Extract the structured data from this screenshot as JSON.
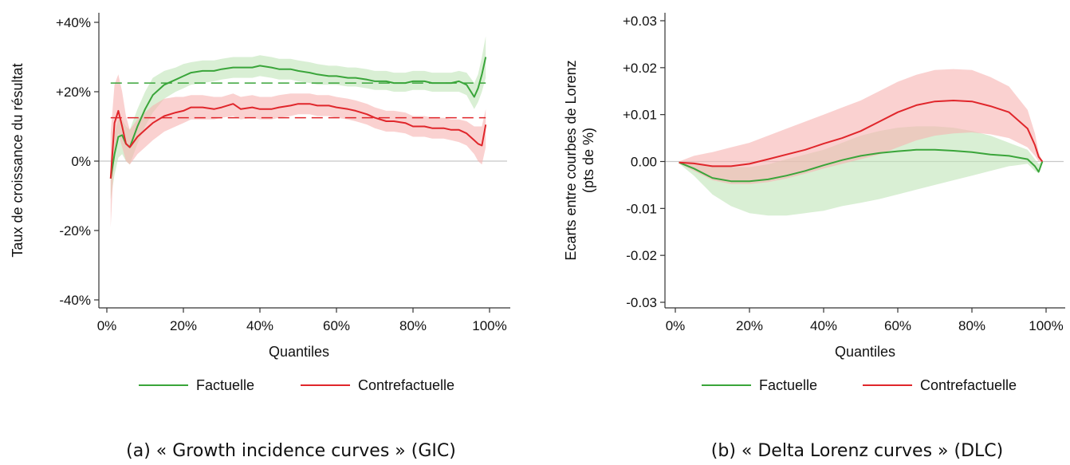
{
  "colors": {
    "factuelle": "#3aa53a",
    "contrefactuelle": "#e0262b",
    "factuelle_band": "#bfe5b8",
    "contrefactuelle_band": "#f6b3b0",
    "zero_line": "#c8c8c8"
  },
  "chart_data": [
    {
      "id": "gic",
      "type": "line",
      "caption": "(a) « Growth incidence curves » (GIC)",
      "xlabel": "Quantiles",
      "ylabel": "Taux de croissance du résultat",
      "xlim": [
        0,
        100
      ],
      "ylim": [
        -40,
        40
      ],
      "xticks": [
        0,
        20,
        40,
        60,
        80,
        100
      ],
      "xtick_labels": [
        "0%",
        "20%",
        "40%",
        "60%",
        "80%",
        "100%"
      ],
      "yticks": [
        40,
        20,
        0,
        -20,
        -40
      ],
      "ytick_labels": [
        "+40%",
        "+20%",
        "0%",
        "-20%",
        "-40%"
      ],
      "zero_line": true,
      "legend_position": "bottom",
      "series": [
        {
          "name": "Factuelle",
          "color_key": "factuelle",
          "x": [
            1,
            2,
            3,
            4,
            5,
            6,
            8,
            10,
            12,
            15,
            18,
            20,
            22,
            25,
            28,
            30,
            33,
            35,
            38,
            40,
            43,
            45,
            48,
            50,
            53,
            55,
            58,
            60,
            63,
            65,
            68,
            70,
            73,
            75,
            78,
            80,
            83,
            85,
            88,
            90,
            92,
            94,
            96,
            97,
            98,
            99
          ],
          "y": [
            -5,
            2,
            7,
            7.5,
            5,
            4,
            10,
            15,
            19,
            22,
            23.5,
            24.5,
            25.5,
            26,
            26,
            26.5,
            27,
            27,
            27,
            27.5,
            27,
            26.5,
            26.5,
            26,
            25.5,
            25,
            24.5,
            24.5,
            24,
            24,
            23.5,
            23,
            23,
            22.5,
            22.5,
            23,
            23,
            22.5,
            22.5,
            22.5,
            23,
            22,
            18.5,
            21,
            25,
            30
          ],
          "lower": [
            -11,
            -4,
            1,
            2,
            0,
            -1,
            5,
            10,
            14,
            18,
            20,
            21,
            22,
            22.5,
            23,
            23.5,
            24,
            24,
            24,
            24.5,
            24,
            23.5,
            23.5,
            23,
            22.5,
            22,
            22,
            22,
            21.5,
            21.5,
            21,
            20.5,
            20.5,
            20,
            20,
            20.5,
            20.5,
            20,
            20,
            20,
            20,
            19,
            15,
            17,
            20,
            24
          ],
          "upper": [
            0,
            8,
            12,
            12,
            10,
            9,
            15,
            20,
            24,
            26,
            27,
            28,
            28.5,
            29,
            29,
            29.5,
            30,
            30,
            30,
            30.5,
            30,
            29.5,
            29.5,
            29,
            28.5,
            28,
            27.5,
            27.5,
            27,
            27,
            26.5,
            26,
            26,
            25.5,
            25.5,
            26,
            26,
            25.5,
            25.5,
            25.5,
            26,
            25.5,
            22.5,
            25,
            30,
            36
          ],
          "mean": 22.5
        },
        {
          "name": "Contrefactuelle",
          "color_key": "contrefactuelle",
          "x": [
            1,
            2,
            3,
            4,
            5,
            6,
            8,
            10,
            12,
            15,
            18,
            20,
            22,
            25,
            28,
            30,
            33,
            35,
            38,
            40,
            43,
            45,
            48,
            50,
            53,
            55,
            58,
            60,
            63,
            65,
            68,
            70,
            73,
            75,
            78,
            80,
            83,
            85,
            88,
            90,
            92,
            94,
            96,
            97,
            98,
            99
          ],
          "y": [
            -5,
            11,
            14.5,
            10,
            5,
            4,
            7,
            9,
            11,
            13,
            14,
            14.5,
            15.5,
            15.5,
            15,
            15.5,
            16.5,
            15,
            15.5,
            15,
            15,
            15.5,
            16,
            16.5,
            16.5,
            16,
            16,
            15.5,
            15,
            14.5,
            13.5,
            12.5,
            11.5,
            11.5,
            11,
            10,
            10,
            9.5,
            9.5,
            9,
            9,
            8,
            6,
            5,
            4.5,
            10.5
          ],
          "lower": [
            -19,
            3,
            8,
            4,
            0,
            -1,
            2,
            4,
            6,
            8.5,
            10,
            11,
            12,
            12,
            12,
            12.5,
            13,
            12,
            12.5,
            12,
            12,
            12.5,
            13,
            13.5,
            13.5,
            13,
            13,
            12.5,
            12,
            11.5,
            10.5,
            9.5,
            8.5,
            8.5,
            8,
            7,
            7,
            6.5,
            6.5,
            6,
            5.5,
            4.5,
            2,
            0,
            -1,
            4
          ],
          "upper": [
            8,
            22,
            25,
            20,
            13,
            9,
            12,
            14,
            16,
            18,
            18.5,
            18.5,
            19,
            19,
            18.5,
            18.5,
            19.5,
            18.5,
            19,
            18.5,
            18.5,
            19,
            19.5,
            19.5,
            19.5,
            19,
            19,
            18.5,
            18,
            17.5,
            16.5,
            15.5,
            14.5,
            14.5,
            14,
            13,
            13,
            12.5,
            12.5,
            12,
            12,
            11.5,
            10,
            10,
            10,
            15
          ],
          "mean": 12.5
        }
      ]
    },
    {
      "id": "dlc",
      "type": "line",
      "caption": "(b) « Delta Lorenz curves » (DLC)",
      "xlabel": "Quantiles",
      "ylabel_line1": "Ecarts entre courbes de Lorenz",
      "ylabel_line2": "(pts de %)",
      "xlim": [
        0,
        100
      ],
      "ylim": [
        -0.03,
        0.03
      ],
      "xticks": [
        0,
        20,
        40,
        60,
        80,
        100
      ],
      "xtick_labels": [
        "0%",
        "20%",
        "40%",
        "60%",
        "80%",
        "100%"
      ],
      "yticks": [
        0.03,
        0.02,
        0.01,
        0,
        -0.01,
        -0.02,
        -0.03
      ],
      "ytick_labels": [
        "+0.03",
        "+0.02",
        "+0.01",
        "0.00",
        "-0.01",
        "-0.02",
        "-0.03"
      ],
      "zero_line": true,
      "legend_position": "bottom",
      "series": [
        {
          "name": "Factuelle",
          "color_key": "factuelle",
          "x": [
            1,
            5,
            10,
            15,
            20,
            25,
            30,
            35,
            40,
            45,
            50,
            55,
            60,
            65,
            70,
            75,
            80,
            85,
            90,
            95,
            97,
            98,
            99
          ],
          "y": [
            -0.0002,
            -0.0015,
            -0.0035,
            -0.0042,
            -0.0042,
            -0.0038,
            -0.003,
            -0.002,
            -0.0008,
            0.0003,
            0.0012,
            0.0018,
            0.0022,
            0.0025,
            0.0025,
            0.0023,
            0.002,
            0.0015,
            0.0012,
            0.0005,
            -0.001,
            -0.0022,
            0.0
          ],
          "lower": [
            -0.0004,
            -0.003,
            -0.007,
            -0.0095,
            -0.011,
            -0.0115,
            -0.0115,
            -0.011,
            -0.0105,
            -0.0095,
            -0.0088,
            -0.008,
            -0.007,
            -0.006,
            -0.005,
            -0.004,
            -0.003,
            -0.002,
            -0.001,
            -0.0005,
            -0.002,
            -0.0025,
            0.0
          ],
          "upper": [
            0.0,
            -0.0002,
            -0.0008,
            -0.0012,
            -0.0012,
            -0.0006,
            0.0005,
            0.0015,
            0.0025,
            0.004,
            0.0055,
            0.0065,
            0.0072,
            0.0075,
            0.0075,
            0.0072,
            0.0065,
            0.0055,
            0.004,
            0.0025,
            0.0005,
            -0.0005,
            0.0
          ],
          "mean": null
        },
        {
          "name": "Contrefactuelle",
          "color_key": "contrefactuelle",
          "x": [
            1,
            5,
            10,
            15,
            20,
            25,
            30,
            35,
            40,
            45,
            50,
            55,
            60,
            65,
            70,
            75,
            80,
            85,
            90,
            95,
            97,
            98,
            99
          ],
          "y": [
            -0.0002,
            -0.0004,
            -0.001,
            -0.001,
            -0.0005,
            0.0005,
            0.0015,
            0.0025,
            0.0038,
            0.005,
            0.0065,
            0.0085,
            0.0105,
            0.012,
            0.0128,
            0.013,
            0.0128,
            0.0118,
            0.0105,
            0.007,
            0.0035,
            0.001,
            0.0
          ],
          "lower": [
            -0.0004,
            -0.002,
            -0.004,
            -0.0048,
            -0.0048,
            -0.0044,
            -0.0036,
            -0.0026,
            -0.0015,
            -0.0005,
            0.0005,
            0.0015,
            0.003,
            0.0045,
            0.0055,
            0.006,
            0.0062,
            0.0058,
            0.005,
            0.003,
            0.0012,
            0.0,
            0.0
          ],
          "upper": [
            0.0,
            0.0012,
            0.002,
            0.003,
            0.004,
            0.0055,
            0.007,
            0.0085,
            0.01,
            0.0115,
            0.013,
            0.015,
            0.017,
            0.0185,
            0.0195,
            0.0197,
            0.0195,
            0.018,
            0.016,
            0.011,
            0.006,
            0.002,
            0.0
          ],
          "mean": null
        }
      ]
    }
  ]
}
